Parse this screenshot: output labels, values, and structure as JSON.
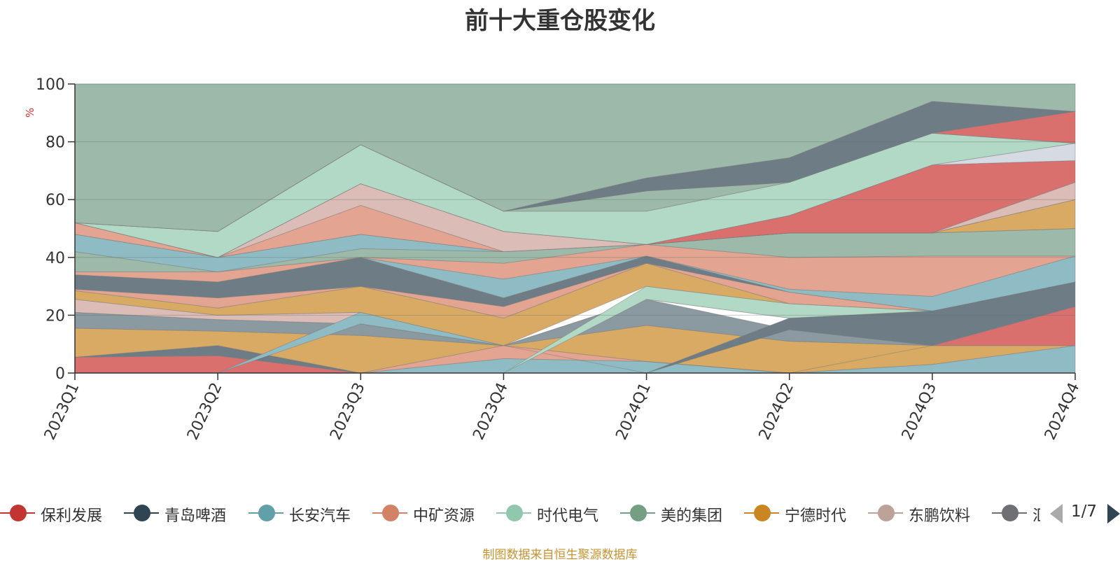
{
  "chart_data": {
    "type": "area",
    "title": "前十大重仓股变化",
    "ylabel": "%",
    "xlabel": "",
    "ylim": [
      0,
      100
    ],
    "y_ticks": [
      0,
      20,
      40,
      60,
      80,
      100
    ],
    "categories": [
      "2023Q1",
      "2023Q2",
      "2023Q3",
      "2023Q4",
      "2024Q1",
      "2024Q2",
      "2024Q3",
      "2024Q4"
    ],
    "layers": [
      {
        "name": "保利发展",
        "color": "#d9706e",
        "lower": [
          0,
          0,
          0,
          0,
          0,
          0,
          0,
          0
        ],
        "upper": [
          5.5,
          6,
          0,
          0,
          0,
          0,
          0,
          0
        ]
      },
      {
        "name": "长安汽车",
        "color": "#8fbcc4",
        "lower": [
          0,
          0,
          0,
          0,
          0,
          0,
          0,
          0
        ],
        "upper": [
          0,
          0,
          0,
          5,
          4,
          0,
          3,
          9.5
        ]
      },
      {
        "name": "青岛啤酒",
        "color": "#6e7c86",
        "lower": [
          5.5,
          6,
          0,
          0,
          0,
          0,
          0,
          0
        ],
        "upper": [
          5.5,
          9.5,
          0,
          0,
          0,
          0,
          0,
          0
        ]
      },
      {
        "name": "宁德时代",
        "color": "#d9aa64",
        "lower": [
          5.5,
          9.5,
          0,
          9.5,
          4,
          0,
          3,
          9.5
        ],
        "upper": [
          15.5,
          14.5,
          13,
          9.5,
          16.5,
          11,
          9.5,
          9.5
        ]
      },
      {
        "name": "中矿资源",
        "color": "#e3a591",
        "lower": [
          0,
          0,
          0,
          5,
          4,
          0,
          0,
          0
        ],
        "upper": [
          0,
          0,
          0,
          9.5,
          4,
          0,
          0,
          0
        ]
      },
      {
        "name": "中矿资源",
        "color": "#8a9aa0",
        "lower": [
          15.5,
          14.5,
          13,
          9.5,
          16.5,
          11,
          9.5,
          9.5
        ],
        "upper": [
          21,
          18.5,
          17,
          9.5,
          25.5,
          15,
          9.5,
          9.5
        ]
      },
      {
        "name": "保利发展",
        "color": "#d9706e",
        "lower": [
          0,
          0,
          0,
          0,
          0,
          0,
          9.5,
          9.5
        ],
        "upper": [
          0,
          0,
          0,
          0,
          0,
          0,
          9.5,
          23
        ]
      },
      {
        "name": "青岛啤酒",
        "color": "#6e7c86",
        "lower": [
          0,
          0,
          0,
          0,
          0,
          15,
          9.5,
          23
        ],
        "upper": [
          0,
          0,
          0,
          0,
          0,
          19,
          21.5,
          31.5
        ]
      },
      {
        "name": "东鹏饮料",
        "color": "#dcbcb6",
        "lower": [
          21,
          18.5,
          17,
          9.5,
          25.5,
          19,
          21.5,
          31.5
        ],
        "upper": [
          25.5,
          20,
          21,
          9.5,
          25.5,
          19,
          21.5,
          31.5
        ]
      },
      {
        "name": "长安汽车",
        "color": "#8fbcc4",
        "lower": [
          0,
          0,
          17,
          9.5,
          0,
          0,
          0,
          0
        ],
        "upper": [
          0,
          0,
          21,
          9.5,
          0,
          0,
          0,
          0
        ]
      },
      {
        "name": "时代电气",
        "color": "#b2d9c6",
        "lower": [
          0,
          0,
          0,
          0,
          25.5,
          19,
          21.5,
          31.5
        ],
        "upper": [
          0,
          0,
          0,
          0,
          30,
          24,
          21.5,
          31.5
        ]
      },
      {
        "name": "宁德时代",
        "color": "#d9aa64",
        "lower": [
          25.5,
          20,
          21,
          9.5,
          30,
          24,
          21.5,
          31.5
        ],
        "upper": [
          28.5,
          22.5,
          30,
          19,
          38,
          24,
          21.5,
          31.5
        ]
      },
      {
        "name": "中矿资源",
        "color": "#e3a591",
        "lower": [
          28.5,
          22.5,
          30,
          19,
          38,
          24,
          21.5,
          31.5
        ],
        "upper": [
          29,
          26,
          30,
          23,
          38,
          28,
          21.5,
          31.5
        ]
      },
      {
        "name": "美的集团",
        "color": "#6e7c86",
        "lower": [
          29,
          26,
          30,
          23,
          38,
          28,
          21.5,
          31.5
        ],
        "upper": [
          34,
          31.5,
          40,
          26,
          40.5,
          28,
          21.5,
          31.5
        ]
      },
      {
        "name": "长安汽车",
        "color": "#8fbcc4",
        "lower": [
          34,
          31.5,
          40,
          26,
          40.5,
          28,
          21.5,
          31.5
        ],
        "upper": [
          34,
          31.5,
          40,
          32.5,
          40.5,
          29,
          26.5,
          40.5
        ]
      },
      {
        "name": "中矿资源",
        "color": "#e3a591",
        "lower": [
          34,
          31.5,
          40,
          32.5,
          40.5,
          29,
          26.5,
          40.5
        ],
        "upper": [
          35,
          35,
          40,
          38,
          44.5,
          40,
          40.5,
          40.5
        ]
      },
      {
        "name": "美的集团",
        "color": "#9db9a9",
        "lower": [
          35,
          35,
          40,
          38,
          44.5,
          40,
          40.5,
          40.5
        ],
        "upper": [
          42,
          35,
          43,
          42,
          44.5,
          48.5,
          48.5,
          50
        ]
      },
      {
        "name": "长安汽车",
        "color": "#8fbcc4",
        "lower": [
          42,
          35,
          43,
          42,
          44.5,
          48.5,
          48.5,
          50
        ],
        "upper": [
          48,
          40,
          48,
          42,
          44.5,
          48.5,
          48.5,
          50
        ]
      },
      {
        "name": "宁德时代",
        "color": "#d9aa64",
        "lower": [
          48,
          40,
          48,
          42,
          44.5,
          48.5,
          48.5,
          50
        ],
        "upper": [
          48,
          40,
          58,
          42,
          44.5,
          48.5,
          48.5,
          60
        ]
      },
      {
        "name": "中矿资源",
        "color": "#e3a591",
        "lower": [
          48,
          40,
          48,
          42,
          44.5,
          48.5,
          48.5,
          60
        ],
        "upper": [
          52,
          40,
          58,
          42,
          44.5,
          48.5,
          48.5,
          60
        ]
      },
      {
        "name": "东鹏饮料",
        "color": "#dcbcb6",
        "lower": [
          52,
          40,
          58,
          42,
          44.5,
          48.5,
          48.5,
          60
        ],
        "upper": [
          52,
          40,
          65.5,
          49,
          44.5,
          48.5,
          48.5,
          66
        ]
      },
      {
        "name": "保利发展",
        "color": "#d9706e",
        "lower": [
          52,
          40,
          65.5,
          49,
          44.5,
          48.5,
          48.5,
          66
        ],
        "upper": [
          52,
          40,
          65.5,
          49,
          44.5,
          54.5,
          72,
          73.5
        ]
      },
      {
        "name": "青岛啤酒",
        "color": "#d6dbe3",
        "lower": [
          52,
          40,
          65.5,
          49,
          44.5,
          54.5,
          72,
          73.5
        ],
        "upper": [
          52,
          40,
          65.5,
          49,
          44.5,
          54.5,
          72,
          79.5
        ]
      },
      {
        "name": "时代电气",
        "color": "#b2d9c6",
        "lower": [
          52,
          40,
          65.5,
          49,
          44.5,
          54.5,
          72,
          79.5
        ],
        "upper": [
          52,
          49,
          79,
          56,
          56,
          66,
          83,
          79.5
        ]
      },
      {
        "name": "美的集团",
        "color": "#9db9a9",
        "lower": [
          52,
          49,
          79,
          56,
          56,
          66,
          83,
          79.5
        ],
        "upper": [
          52,
          49,
          79,
          56,
          63,
          66,
          83,
          79.5
        ]
      },
      {
        "name": "保利发展",
        "color": "#d9706e",
        "lower": [
          52,
          49,
          79,
          56,
          63,
          66,
          83,
          79.5
        ],
        "upper": [
          52,
          49,
          79,
          56,
          63,
          66,
          83,
          90.5
        ]
      },
      {
        "name": "青岛啤酒",
        "color": "#6e7c86",
        "lower": [
          52,
          49,
          79,
          56,
          63,
          66,
          83,
          90.5
        ],
        "upper": [
          52,
          49,
          79,
          56,
          67.5,
          74.5,
          94,
          90.5
        ]
      },
      {
        "name": "美的集团",
        "color": "#9db9a9",
        "lower": [
          52,
          49,
          79,
          56,
          67.5,
          74.5,
          94,
          90.5
        ],
        "upper": [
          100,
          100,
          100,
          100,
          100,
          100,
          100,
          100
        ]
      }
    ],
    "legend": [
      {
        "name": "保利发展",
        "color": "#c23531"
      },
      {
        "name": "青岛啤酒",
        "color": "#2f4554"
      },
      {
        "name": "长安汽车",
        "color": "#61a0a8"
      },
      {
        "name": "中矿资源",
        "color": "#d48265"
      },
      {
        "name": "时代电气",
        "color": "#91c7ae"
      },
      {
        "name": "美的集团",
        "color": "#749f83"
      },
      {
        "name": "宁德时代",
        "color": "#ca8622"
      },
      {
        "name": "东鹏饮料",
        "color": "#bda29a"
      },
      {
        "name": "汇川技术",
        "color": "#6e7074"
      }
    ]
  },
  "legend_pager": "1/7",
  "source_note": "制图数据来自恒生聚源数据库"
}
